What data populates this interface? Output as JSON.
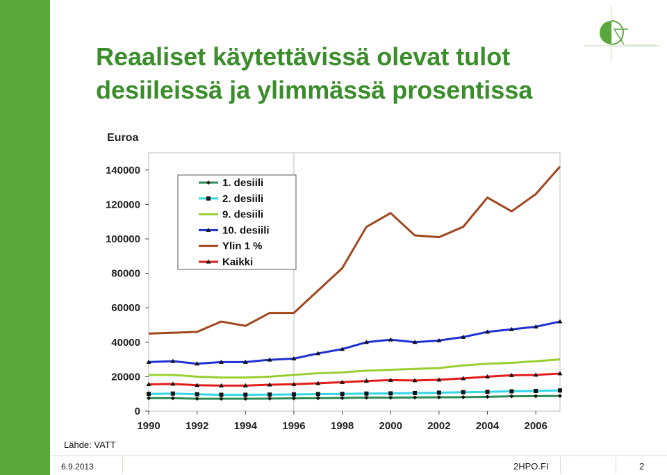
{
  "slide": {
    "title_line1": "Reaaliset käytettävissä olevat tulot",
    "title_line2": "desiileissä ja ylimmässä prosentissa",
    "source": "Lähde: VATT",
    "date": "6.9.2013",
    "site": "2HPO.FI",
    "page_number": "2",
    "accent_color": "#3a8d2a",
    "sidebar_color": "#5aa83c"
  },
  "chart_data": {
    "type": "line",
    "title": "",
    "ylabel": "Euroa",
    "xlabel": "",
    "ylim": [
      0,
      150000
    ],
    "xlim": [
      1990,
      2007
    ],
    "yticks": [
      0,
      20000,
      40000,
      60000,
      80000,
      100000,
      120000,
      140000
    ],
    "ytick_labels": [
      "0",
      "20000",
      "40000",
      "60000",
      "80000",
      "100000",
      "120000",
      "140000"
    ],
    "xticks": [
      1990,
      1992,
      1994,
      1996,
      1998,
      2000,
      2002,
      2004,
      2006
    ],
    "xtick_labels": [
      "1990",
      "1992",
      "1994",
      "1996",
      "1998",
      "2000",
      "2002",
      "2004",
      "2006"
    ],
    "x": [
      1990,
      1991,
      1992,
      1993,
      1994,
      1995,
      1996,
      1997,
      1998,
      1999,
      2000,
      2001,
      2002,
      2003,
      2004,
      2005,
      2006,
      2007
    ],
    "vertical_marker_x": 1996,
    "legend_position": "upper-left",
    "series": [
      {
        "name": "1. desiili",
        "color": "#2e8b57",
        "marker": "diamond",
        "values": [
          7500,
          7500,
          7200,
          7200,
          7200,
          7300,
          7400,
          7500,
          7600,
          7800,
          7800,
          7900,
          8000,
          8100,
          8300,
          8600,
          8700,
          8800
        ]
      },
      {
        "name": "2. desiili",
        "color": "#33d6e6",
        "marker": "square",
        "values": [
          10000,
          10200,
          9800,
          9500,
          9500,
          9600,
          9700,
          9900,
          10000,
          10200,
          10300,
          10500,
          10700,
          11000,
          11200,
          11500,
          11700,
          12000
        ]
      },
      {
        "name": "9. desiili",
        "color": "#9acd32",
        "marker": "none",
        "values": [
          21000,
          21000,
          20000,
          19500,
          19500,
          20000,
          21000,
          22000,
          22500,
          23500,
          24000,
          24500,
          25000,
          26500,
          27500,
          28000,
          29000,
          30000
        ]
      },
      {
        "name": "10. desiili",
        "color": "#1f2fd1",
        "marker": "triangle",
        "values": [
          28500,
          29000,
          27500,
          28500,
          28500,
          29800,
          30500,
          33500,
          36000,
          40000,
          41500,
          40000,
          41000,
          43000,
          46000,
          47500,
          49000,
          52000
        ]
      },
      {
        "name": "Ylin 1 %",
        "color": "#a0461e",
        "marker": "none",
        "values": [
          45000,
          45500,
          46000,
          52000,
          49500,
          57000,
          57000,
          70000,
          83000,
          107000,
          115000,
          102000,
          101000,
          107000,
          124000,
          116000,
          126000,
          142000
        ]
      },
      {
        "name": "Kaikki",
        "color": "#e31a1a",
        "marker": "triangle",
        "values": [
          15500,
          15800,
          15000,
          14800,
          14800,
          15300,
          15600,
          16200,
          16800,
          17500,
          18000,
          17800,
          18200,
          19000,
          20000,
          20800,
          21000,
          21800
        ]
      }
    ]
  }
}
